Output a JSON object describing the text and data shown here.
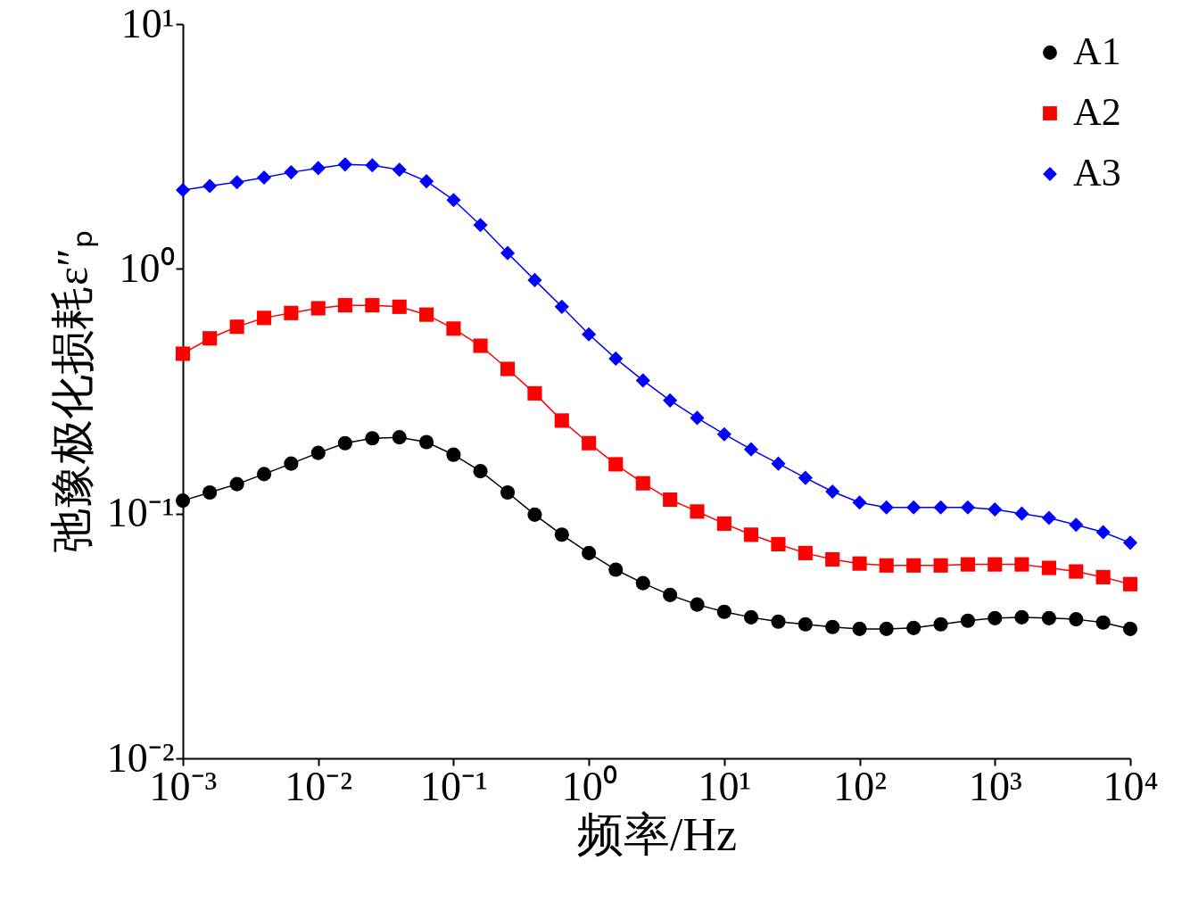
{
  "chart_data": {
    "type": "line",
    "xlabel": "频率/Hz",
    "ylabel": "弛豫极化损耗ε″ₚ",
    "log": "xy",
    "grid": false,
    "legend": "top right",
    "line_style": "solid",
    "x": [
      0.001,
      0.00158,
      0.00251,
      0.00398,
      0.00631,
      0.01,
      0.0158,
      0.0251,
      0.0398,
      0.0631,
      0.1,
      0.158,
      0.251,
      0.398,
      0.631,
      1,
      1.58,
      2.51,
      3.98,
      6.31,
      10,
      15.8,
      25.1,
      39.8,
      63.1,
      100,
      158,
      251,
      398,
      631,
      1000,
      1580,
      2510,
      3980,
      6310,
      10000
    ],
    "xlim": [
      0.001,
      10000
    ],
    "xticks": [
      {
        "value": 0.001,
        "label": "10⁻³"
      },
      {
        "value": 0.01,
        "label": "10⁻²"
      },
      {
        "value": 0.1,
        "label": "10⁻¹"
      },
      {
        "value": 1,
        "label": "10⁰"
      },
      {
        "value": 10,
        "label": "10¹"
      },
      {
        "value": 100,
        "label": "10²"
      },
      {
        "value": 1000,
        "label": "10³"
      },
      {
        "value": 10000,
        "label": "10⁴"
      }
    ],
    "ylim": [
      0.01,
      10
    ],
    "yticks": [
      {
        "value": 0.01,
        "label": "10⁻²"
      },
      {
        "value": 0.1,
        "label": "10⁻¹"
      },
      {
        "value": 1,
        "label": "10⁰"
      },
      {
        "value": 10,
        "label": "10¹"
      }
    ],
    "series": [
      {
        "name": "A1",
        "color": "#000000",
        "marker": "circle",
        "values": [
          0.113,
          0.122,
          0.132,
          0.145,
          0.16,
          0.177,
          0.194,
          0.203,
          0.205,
          0.196,
          0.174,
          0.149,
          0.122,
          0.099,
          0.082,
          0.069,
          0.059,
          0.052,
          0.0465,
          0.0425,
          0.0397,
          0.0377,
          0.0362,
          0.0353,
          0.0344,
          0.0338,
          0.0338,
          0.0341,
          0.0353,
          0.0365,
          0.0374,
          0.0377,
          0.0374,
          0.037,
          0.0359,
          0.0338
        ]
      },
      {
        "name": "A2",
        "color": "#ff0000",
        "marker": "square",
        "values": [
          0.45,
          0.52,
          0.58,
          0.63,
          0.66,
          0.69,
          0.71,
          0.71,
          0.7,
          0.65,
          0.57,
          0.485,
          0.39,
          0.31,
          0.24,
          0.194,
          0.159,
          0.133,
          0.114,
          0.102,
          0.091,
          0.082,
          0.075,
          0.069,
          0.065,
          0.0625,
          0.0614,
          0.0614,
          0.0614,
          0.062,
          0.062,
          0.062,
          0.06,
          0.058,
          0.055,
          0.0515
        ]
      },
      {
        "name": "A3",
        "color": "#0000ff",
        "marker": "diamond",
        "values": [
          2.1,
          2.18,
          2.26,
          2.36,
          2.48,
          2.58,
          2.67,
          2.65,
          2.54,
          2.28,
          1.91,
          1.51,
          1.16,
          0.9,
          0.7,
          0.54,
          0.43,
          0.35,
          0.29,
          0.246,
          0.211,
          0.183,
          0.16,
          0.14,
          0.123,
          0.111,
          0.106,
          0.106,
          0.106,
          0.106,
          0.104,
          0.1,
          0.096,
          0.09,
          0.084,
          0.076
        ]
      }
    ]
  }
}
